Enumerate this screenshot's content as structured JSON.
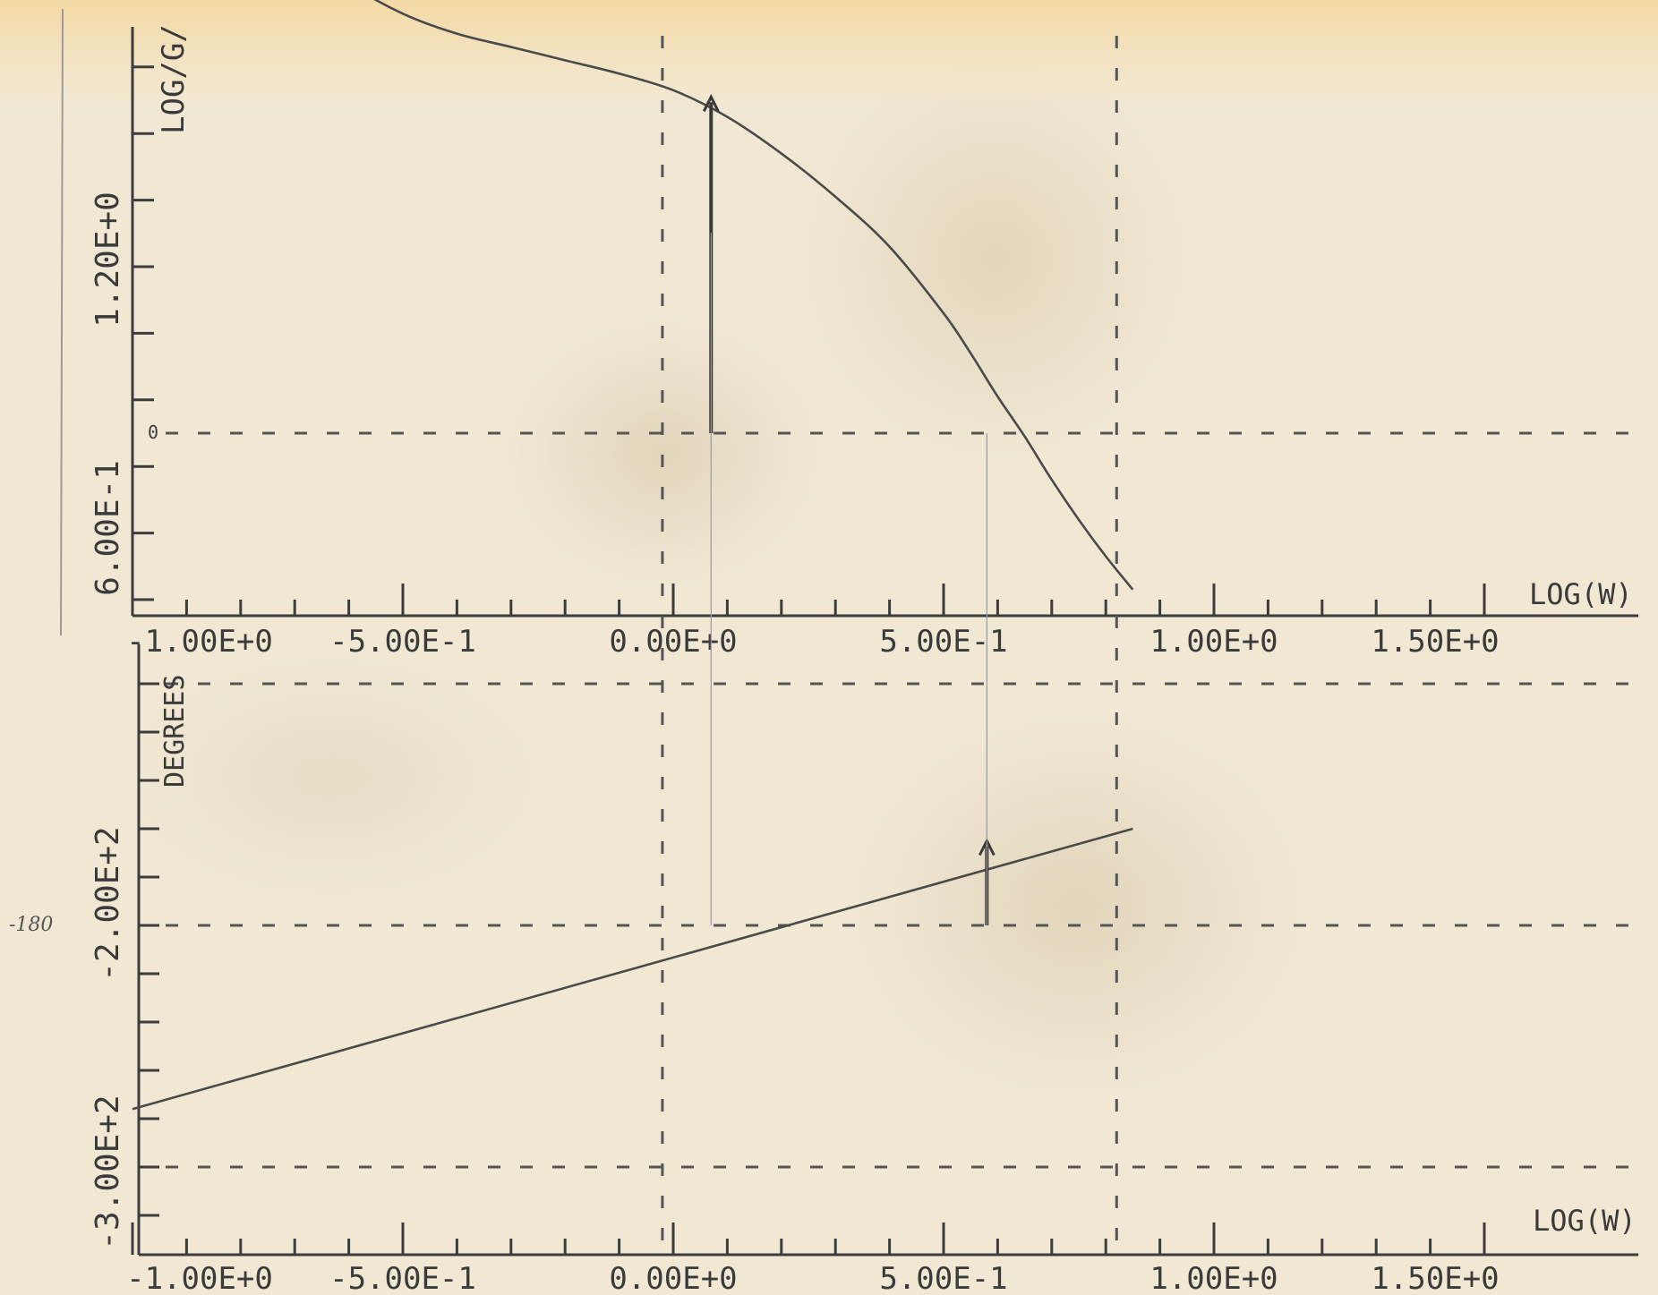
{
  "chart_data": [
    {
      "type": "line",
      "xlabel": "LOG(W)",
      "ylabel": "LOG/G/",
      "xlim": [
        -1.0,
        1.5
      ],
      "x_tick_labels": [
        "-1.00E+0",
        "-5.00E-1",
        "0.00E+0",
        "5.00E-1",
        "1.00E+0",
        "1.50E+0"
      ],
      "y_tick_labels": [
        "1.20E+0",
        "6.00E-1"
      ],
      "y_zero_label": "0",
      "series": [
        {
          "x": [
            -1.0,
            -0.9,
            -0.8,
            -0.7,
            -0.6,
            -0.5,
            -0.4,
            -0.3,
            -0.2,
            -0.1,
            0.0,
            0.1,
            0.2,
            0.3,
            0.4,
            0.5,
            0.55,
            0.6,
            0.65,
            0.7,
            0.75,
            0.8,
            0.85
          ],
          "y": [
            2.06,
            1.82,
            1.62,
            1.47,
            1.35,
            1.26,
            1.2,
            1.16,
            1.12,
            1.08,
            1.03,
            0.95,
            0.84,
            0.71,
            0.56,
            0.36,
            0.24,
            0.11,
            -0.01,
            -0.14,
            -0.26,
            -0.37,
            -0.47
          ]
        }
      ],
      "gridlines_y": [
        0.0
      ],
      "gridlines_x": [
        -0.02,
        0.82
      ],
      "annotations": [
        {
          "type": "arrow",
          "x": 0.07,
          "y_from": 0.0,
          "y_to": 1.01
        }
      ]
    },
    {
      "type": "line",
      "xlabel": "LOG(W)",
      "ylabel": "DEGREES",
      "xlim": [
        -1.0,
        1.5
      ],
      "x_tick_labels": [
        "-1.00E+0",
        "-5.00E-1",
        "0.00E+0",
        "5.00E-1",
        "1.00E+0",
        "1.50E+0"
      ],
      "y_tick_labels": [
        "-2.00E+2",
        "-3.00E+2"
      ],
      "handwritten_label": "-180",
      "series": [
        {
          "x": [
            -1.0,
            0.85
          ],
          "y": [
            -256,
            -140
          ]
        }
      ],
      "gridlines_y": [
        -80,
        -180,
        -280
      ],
      "gridlines_x": [
        -0.02,
        0.82
      ],
      "annotations": [
        {
          "type": "arrow",
          "x": 0.58,
          "y_from": -180,
          "y_to": -145
        }
      ]
    }
  ]
}
